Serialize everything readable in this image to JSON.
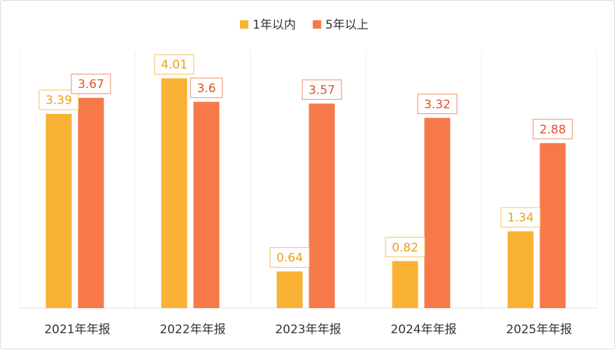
{
  "chart_data": {
    "type": "bar",
    "categories": [
      "2021年年报",
      "2022年年报",
      "2023年年报",
      "2024年年报",
      "2025年年报"
    ],
    "series": [
      {
        "name": "1年以内",
        "values": [
          3.39,
          4.01,
          0.64,
          0.82,
          1.34
        ],
        "labels": [
          "3.39",
          "4.01",
          "0.64",
          "0.82",
          "1.34"
        ],
        "color": "#f9b233"
      },
      {
        "name": "5年以上",
        "values": [
          3.67,
          3.6,
          3.57,
          3.32,
          2.88
        ],
        "labels": [
          "3.67",
          "3.6",
          "3.57",
          "3.32",
          "2.88"
        ],
        "color": "#f7794a"
      }
    ],
    "ylim": [
      0,
      4.5
    ],
    "legend": "top-center",
    "grid": "vertical separators only"
  }
}
